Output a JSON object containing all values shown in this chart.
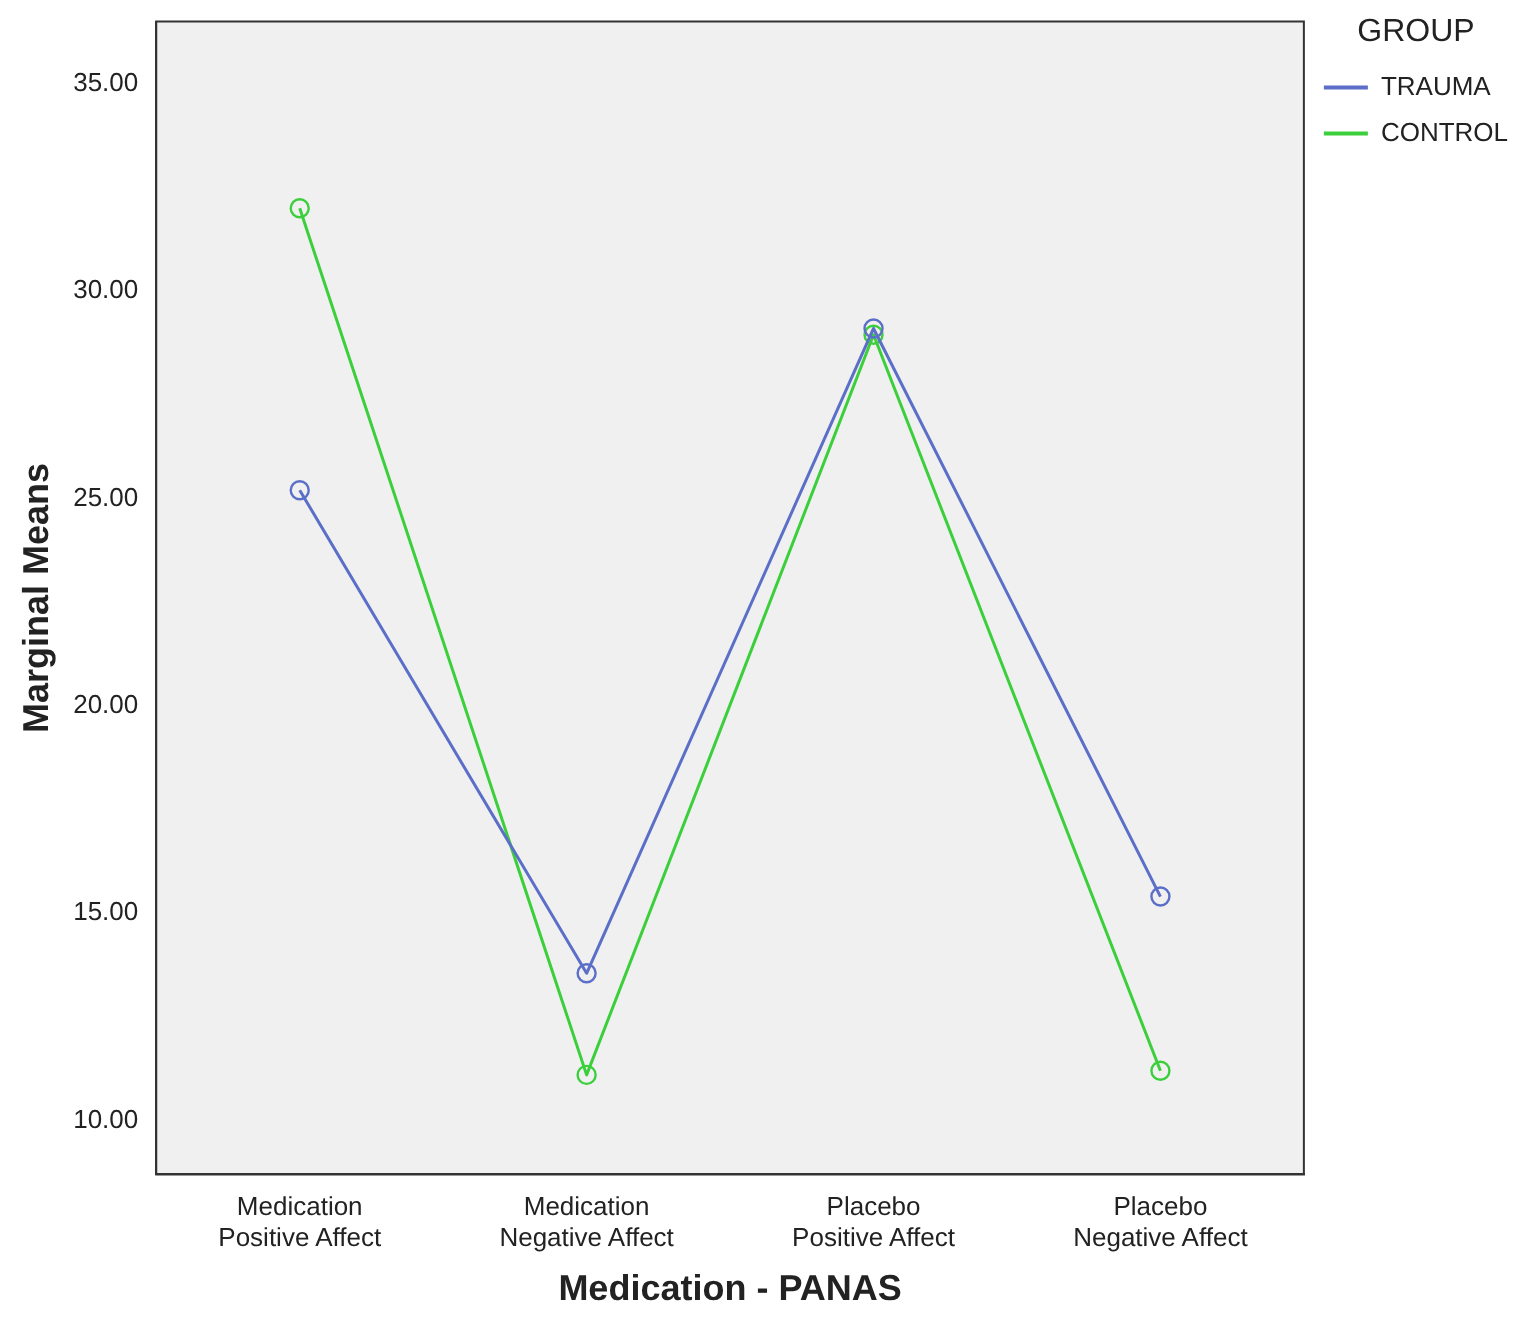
{
  "chart_data": {
    "type": "line",
    "xlabel": "Medication - PANAS",
    "ylabel": "Marginal Means",
    "legend_title": "GROUP",
    "categories": [
      "Medication Positive Affect",
      "Medication Negative Affect",
      "Placebo Positive Affect",
      "Placebo Negative Affect"
    ],
    "series": [
      {
        "name": "TRAUMA",
        "color": "#5b6fc8",
        "values": [
          25.2,
          13.55,
          29.1,
          15.4
        ]
      },
      {
        "name": "CONTROL",
        "color": "#3ccf3c",
        "values": [
          32.0,
          11.1,
          28.95,
          11.2
        ]
      }
    ],
    "ylim": [
      8.7,
      36.5
    ],
    "yticks": [
      {
        "value": 10,
        "label": "10.00"
      },
      {
        "value": 15,
        "label": "15.00"
      },
      {
        "value": 20,
        "label": "20.00"
      },
      {
        "value": 25,
        "label": "25.00"
      },
      {
        "value": 30,
        "label": "30.00"
      },
      {
        "value": 35,
        "label": "35.00"
      }
    ],
    "grid": false,
    "legend": "top right",
    "marker": "circle",
    "line_style": "solid"
  }
}
